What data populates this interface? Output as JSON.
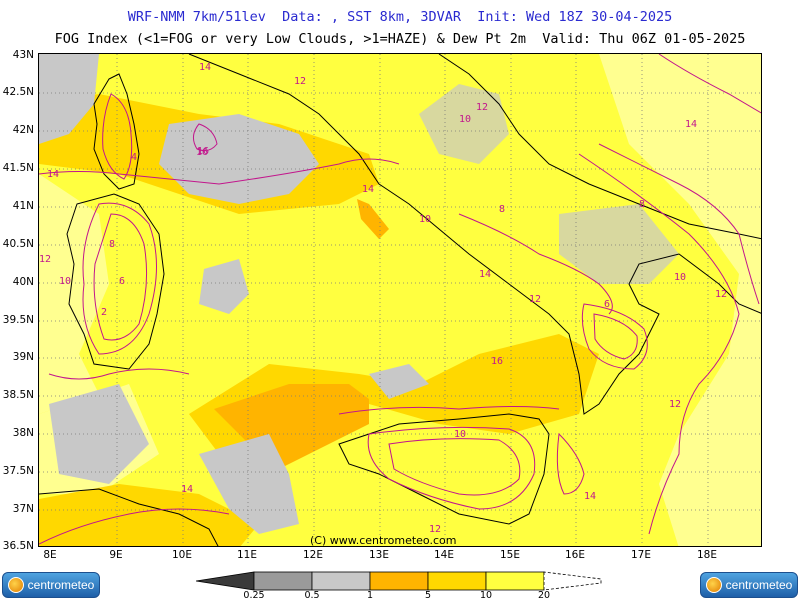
{
  "header": {
    "line1": "WRF-NMM 7km/51lev  Data: , SST 8km, 3DVAR  Init: Wed 18Z 30-04-2025",
    "line2": "FOG Index (<1=FOG or very Low Clouds, >1=HAZE) & Dew Pt 2m  Valid: Thu 06Z 01-05-2025"
  },
  "lat_labels": [
    "43N",
    "42.5N",
    "42N",
    "41.5N",
    "41N",
    "40.5N",
    "40N",
    "39.5N",
    "39N",
    "38.5N",
    "38N",
    "37.5N",
    "37N",
    "36.5N"
  ],
  "lon_labels": [
    "8E",
    "9E",
    "10E",
    "11E",
    "12E",
    "13E",
    "14E",
    "15E",
    "16E",
    "17E",
    "18E"
  ],
  "copyright": "(C) www.centrometeo.com",
  "logo_left": "centrometeo",
  "logo_right": "centrometeo",
  "legend": {
    "labels": [
      "0.25",
      "0.5",
      "1",
      "5",
      "10",
      "20"
    ],
    "colors": [
      "#5a5a5a",
      "#9a9a9a",
      "#c8c8c8",
      "#ffb400",
      "#ffd800",
      "#ffff40"
    ]
  },
  "dewpoint_labels": [
    "14",
    "12",
    "10",
    "8",
    "6",
    "4",
    "16",
    "2",
    "12",
    "14",
    "10",
    "12",
    "14",
    "16",
    "10",
    "8",
    "12",
    "14",
    "6",
    "12",
    "10",
    "8",
    "12",
    "14",
    "16",
    "14",
    "12",
    "10",
    "14"
  ],
  "colors": {
    "title": "#2a2ad0",
    "contour": "#c2168c",
    "coast": "#000000",
    "grid": "#7a7a7a"
  }
}
